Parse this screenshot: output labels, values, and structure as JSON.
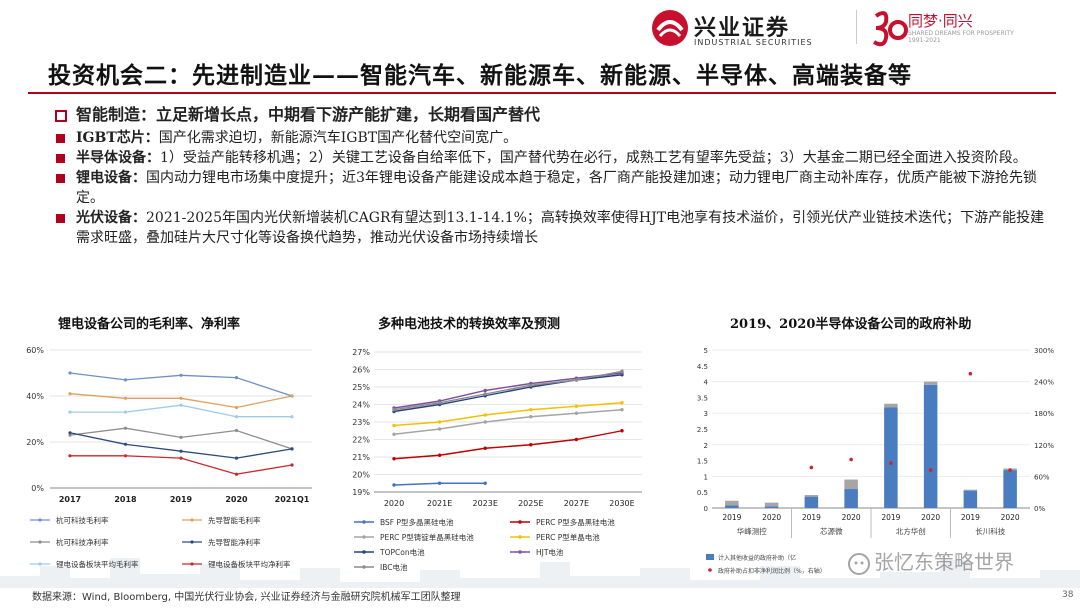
{
  "header": {
    "logo_name": "兴业证券",
    "logo_sub": "INDUSTRIAL SECURITIES",
    "anniv_slogan": "同梦·同兴",
    "anniv_sub1": "SHARED DREAMS FOR PROSPERITY",
    "anniv_sub2": "1991-2021"
  },
  "title": "投资机会二：先进制造业——智能汽车、新能源车、新能源、半导体、高端装备等",
  "bullets": {
    "heading": "智能制造：立足新增长点，中期看下游产能扩建，长期看国产替代",
    "items": [
      {
        "label": "IGBT芯片：",
        "text": "国产化需求迫切，新能源汽车IGBT国产化替代空间宽广。"
      },
      {
        "label": "半导体设备：",
        "text": "1）受益产能转移机遇；2）关键工艺设备自给率低下，国产替代势在必行，成熟工艺有望率先受益；3）大基金二期已经全面进入投资阶段。"
      },
      {
        "label": "锂电设备：",
        "text": "国内动力锂电市场集中度提升；近3年锂电设备产能建设成本趋于稳定，各厂商产能投建加速；动力锂电厂商主动补库存，优质产能被下游抢先锁定。"
      },
      {
        "label": "光伏设备：",
        "text": "2021-2025年国内光伏新增装机CAGR有望达到13.1-14.1%；高转换效率使得HJT电池享有技术溢价，引领光伏产业链技术迭代；下游产能投建需求旺盛，叠加硅片大尺寸化等设备换代趋势，推动光伏设备市场持续增长"
      }
    ]
  },
  "chart_titles": {
    "c1": "锂电设备公司的毛利率、净利率",
    "c2": "多种电池技术的转换效率及预测",
    "c3": "2019、2020半导体设备公司的政府补助"
  },
  "chart_data": [
    {
      "type": "line",
      "title": "锂电设备公司的毛利率、净利率",
      "categories": [
        "2017",
        "2018",
        "2019",
        "2020",
        "2021Q1"
      ],
      "y_ticks": [
        "0%",
        "20%",
        "40%",
        "60%"
      ],
      "ylim": [
        0,
        0.6
      ],
      "series": [
        {
          "name": "杭可科技毛利率",
          "color": "#6f8fc7",
          "values": [
            0.5,
            0.47,
            0.49,
            0.48,
            0.4
          ]
        },
        {
          "name": "先导智能毛利率",
          "color": "#e0a060",
          "values": [
            0.41,
            0.39,
            0.39,
            0.35,
            0.4
          ]
        },
        {
          "name": "杭可科技净利率",
          "color": "#8e8e8e",
          "values": [
            0.23,
            0.26,
            0.22,
            0.25,
            0.17
          ]
        },
        {
          "name": "先导智能净利率",
          "color": "#2e4a7f",
          "values": [
            0.24,
            0.19,
            0.16,
            0.13,
            0.17
          ]
        },
        {
          "name": "锂电设备板块平均毛利率",
          "color": "#9fcbe8",
          "values": [
            0.33,
            0.33,
            0.36,
            0.31,
            0.31
          ]
        },
        {
          "name": "锂电设备板块平均净利率",
          "color": "#c8282e",
          "values": [
            0.14,
            0.14,
            0.13,
            0.06,
            0.1
          ]
        }
      ]
    },
    {
      "type": "line",
      "title": "多种电池技术的转换效率及预测",
      "categories": [
        "2020",
        "2021E",
        "2023E",
        "2025E",
        "2027E",
        "2030E"
      ],
      "y_ticks": [
        "19%",
        "20%",
        "21%",
        "22%",
        "23%",
        "24%",
        "25%",
        "26%",
        "27%"
      ],
      "ylim": [
        0.19,
        0.27
      ],
      "series": [
        {
          "name": "BSF P型多晶黑硅电池",
          "color": "#4472c4",
          "values": [
            0.194,
            0.195,
            0.195,
            null,
            null,
            null
          ]
        },
        {
          "name": "PERC P型多晶黑硅电池",
          "color": "#c00000",
          "values": [
            0.209,
            0.211,
            0.215,
            0.217,
            0.22,
            0.225
          ]
        },
        {
          "name": "PERC P型铸锭单晶黑硅电池",
          "color": "#a5a5a5",
          "values": [
            0.223,
            0.226,
            0.23,
            0.233,
            0.235,
            0.237
          ]
        },
        {
          "name": "PERC P型单晶电池",
          "color": "#f2c200",
          "values": [
            0.228,
            0.23,
            0.234,
            0.237,
            0.239,
            0.241
          ]
        },
        {
          "name": "TOPCon电池",
          "color": "#264478",
          "values": [
            0.236,
            0.24,
            0.245,
            0.25,
            0.254,
            0.257
          ]
        },
        {
          "name": "HJT电池",
          "color": "#7f4f9f",
          "values": [
            0.238,
            0.242,
            0.248,
            0.252,
            0.255,
            0.258
          ]
        },
        {
          "name": "IBC电池",
          "color": "#8c8c8c",
          "values": [
            0.237,
            0.241,
            0.246,
            0.251,
            0.254,
            0.259
          ]
        }
      ]
    },
    {
      "type": "bar",
      "title": "2019、2020半导体设备公司的政府补助",
      "categories": [
        "2019",
        "2020",
        "2019",
        "2020",
        "2019",
        "2020",
        "2019",
        "2020"
      ],
      "groups": [
        "华峰测控",
        "芯源微",
        "北方华创",
        "长川科技"
      ],
      "left_ticks": [
        "0",
        "0.5",
        "1",
        "1.5",
        "2",
        "2.5",
        "3",
        "3.5",
        "4",
        "4.5",
        "5"
      ],
      "right_ticks": [
        "0%",
        "60%",
        "120%",
        "180%",
        "240%",
        "300%"
      ],
      "ylim": [
        0,
        5
      ],
      "y2lim": [
        0,
        3
      ],
      "series": [
        {
          "name": "计入其他收益的政府补助（亿）",
          "color": "#4a7cc0",
          "values": [
            0.08,
            0.05,
            0.36,
            0.6,
            3.18,
            3.9,
            0.55,
            1.2
          ]
        },
        {
          "name": "政府补助占扣非净利润比例（%，右轴）",
          "color": "#c8282e",
          "values": [
            null,
            null,
            0.77,
            0.92,
            0.85,
            0.72,
            2.55,
            0.72
          ]
        }
      ],
      "stack_top": [
        0.15,
        0.12,
        0.05,
        0.3,
        0.12,
        0.1,
        0.03,
        0.05
      ]
    }
  ],
  "legend_c1": [
    "杭可科技毛利率",
    "先导智能毛利率",
    "杭可科技净利率",
    "先导智能净利率",
    "锂电设备板块平均毛利率",
    "锂电设备板块平均净利率"
  ],
  "legend_c3": [
    "计入其他收益的政府补助（亿",
    "政府补助占扣非净利润比例（%，右轴）"
  ],
  "footer": "数据来源：Wind, Bloomberg, 中国光伏行业协会, 兴业证券经济与金融研究院机械军工团队整理",
  "page_number": "38",
  "watermark": "张忆东策略世界",
  "colors": {
    "accent": "#b0001e",
    "logo_red": "#c8102e"
  }
}
